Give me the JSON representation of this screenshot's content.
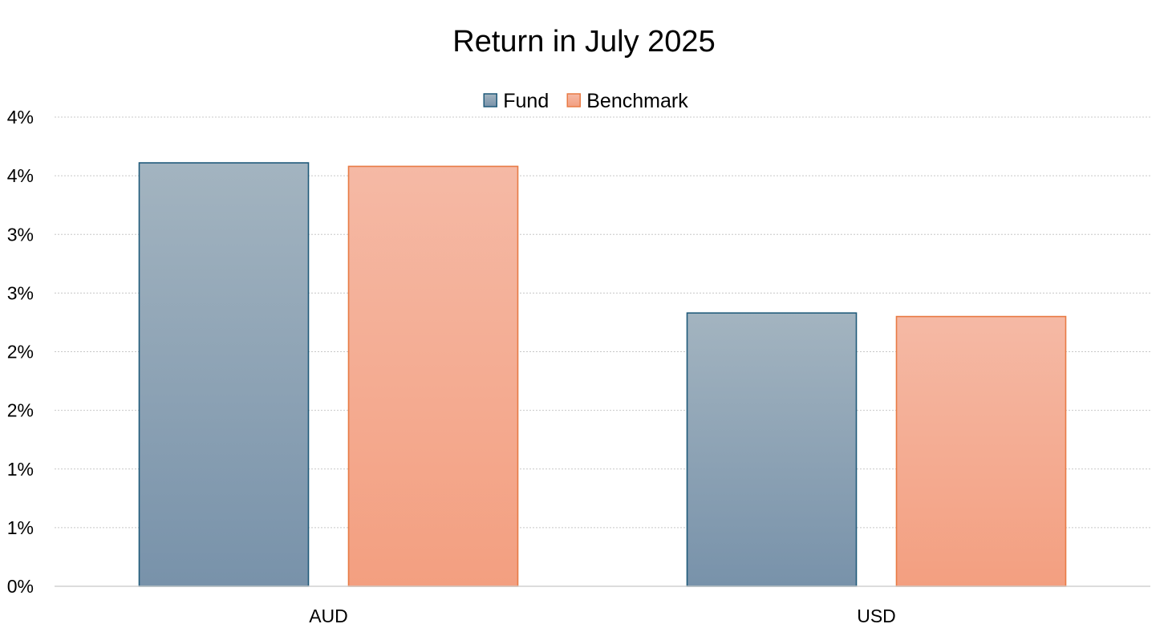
{
  "chart_data": {
    "type": "bar",
    "title": "Return in July 2025",
    "xlabel": "",
    "ylabel": "",
    "categories": [
      "AUD",
      "USD"
    ],
    "series": [
      {
        "name": "Fund",
        "values": [
          3.61,
          2.33
        ],
        "color": "#1f5a7a",
        "fill_top": "#a3b4c0",
        "fill_bottom": "#7892aa"
      },
      {
        "name": "Benchmark",
        "values": [
          3.58,
          2.3
        ],
        "color": "#e87b45",
        "fill_top": "#f5b9a5",
        "fill_bottom": "#f39f80"
      }
    ],
    "ylim": [
      0,
      4
    ],
    "yticks": [
      0,
      0.5,
      1,
      1.5,
      2,
      2.5,
      3,
      3.5,
      4
    ],
    "ytick_labels": [
      "0%",
      "1%",
      "1%",
      "2%",
      "2%",
      "3%",
      "3%",
      "4%",
      "4%"
    ],
    "grid": true,
    "legend_position": "top-center"
  }
}
